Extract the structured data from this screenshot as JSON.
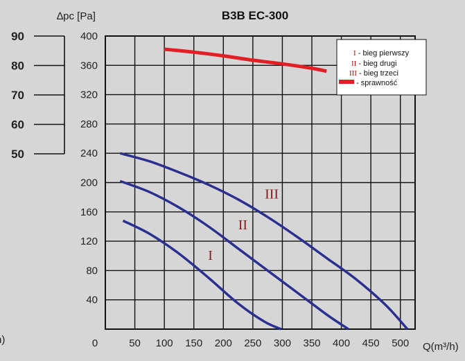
{
  "chart_data": {
    "type": "line",
    "title": "B3B EC-300",
    "ylabel": "∆pc [Pa]",
    "xlabel": "Q(m³/h)",
    "left_cut_label": "h)",
    "xlim": [
      0,
      525
    ],
    "ylim": [
      0,
      400
    ],
    "x_ticks": [
      0,
      50,
      100,
      150,
      200,
      250,
      300,
      350,
      400,
      450,
      500
    ],
    "y_ticks": [
      40,
      80,
      120,
      160,
      200,
      240,
      280,
      320,
      360,
      400
    ],
    "efficiency_ticks": [
      90,
      80,
      70,
      60,
      50
    ],
    "grid": true,
    "legend_position": "top-right",
    "legend": [
      {
        "symbol": "I",
        "text": " - bieg pierwszy"
      },
      {
        "symbol": "II",
        "text": " - bieg drugi"
      },
      {
        "symbol": "III",
        "text": " - bieg trzeci"
      },
      {
        "symbol": "line",
        "text": " - sprawność"
      }
    ],
    "series": [
      {
        "label": "I",
        "color": "#2b2f8f",
        "x": [
          30,
          75,
          125,
          175,
          225,
          270,
          298
        ],
        "y": [
          148,
          130,
          103,
          70,
          35,
          10,
          0
        ],
        "label_at": [
          178,
          101
        ]
      },
      {
        "label": "II",
        "color": "#2b2f8f",
        "x": [
          25,
          75,
          125,
          175,
          225,
          275,
          325,
          375,
          412
        ],
        "y": [
          202,
          187,
          166,
          140,
          110,
          80,
          50,
          20,
          0
        ],
        "label_at": [
          233,
          143
        ]
      },
      {
        "label": "III",
        "color": "#2b2f8f",
        "x": [
          25,
          75,
          125,
          175,
          225,
          275,
          325,
          375,
          425,
          475,
          512
        ],
        "y": [
          240,
          229,
          214,
          197,
          177,
          153,
          126,
          97,
          68,
          33,
          0
        ],
        "label_at": [
          282,
          185
        ]
      },
      {
        "label": "",
        "color": "#e31e24",
        "x": [
          100,
          150,
          200,
          250,
          300,
          350,
          375
        ],
        "y": [
          382,
          378,
          373,
          367,
          362,
          356,
          352
        ]
      }
    ]
  }
}
